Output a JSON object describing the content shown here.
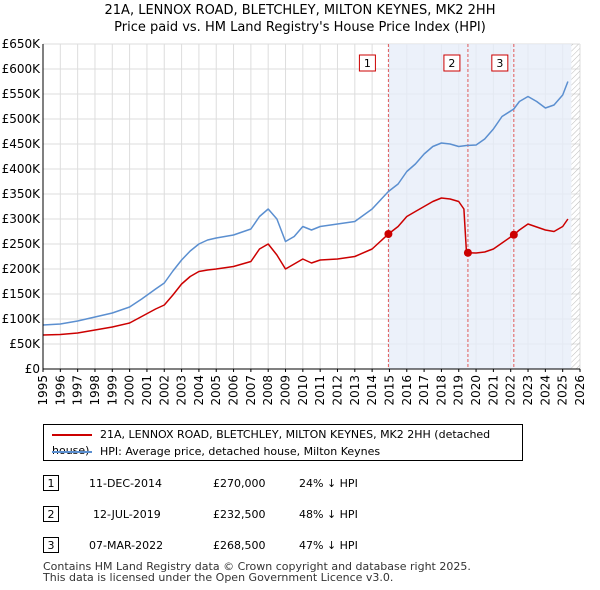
{
  "title_line1": "21A, LENNOX ROAD, BLETCHLEY, MILTON KEYNES, MK2 2HH",
  "title_line2": "Price paid vs. HM Land Registry's House Price Index (HPI)",
  "chart_data": {
    "type": "line",
    "ylim": [
      0,
      650000
    ],
    "xlim": [
      1995,
      2026
    ],
    "y_ticks": [
      {
        "value": 0,
        "label": "£0"
      },
      {
        "value": 50000,
        "label": "£50K"
      },
      {
        "value": 100000,
        "label": "£100K"
      },
      {
        "value": 150000,
        "label": "£150K"
      },
      {
        "value": 200000,
        "label": "£200K"
      },
      {
        "value": 250000,
        "label": "£250K"
      },
      {
        "value": 300000,
        "label": "£300K"
      },
      {
        "value": 350000,
        "label": "£350K"
      },
      {
        "value": 400000,
        "label": "£400K"
      },
      {
        "value": 450000,
        "label": "£450K"
      },
      {
        "value": 500000,
        "label": "£500K"
      },
      {
        "value": 550000,
        "label": "£550K"
      },
      {
        "value": 600000,
        "label": "£600K"
      },
      {
        "value": 650000,
        "label": "£650K"
      }
    ],
    "x_ticks": [
      "1995",
      "1996",
      "1997",
      "1998",
      "1999",
      "2000",
      "2001",
      "2002",
      "2003",
      "2004",
      "2005",
      "2006",
      "2007",
      "2008",
      "2009",
      "2010",
      "2011",
      "2012",
      "2013",
      "2014",
      "2015",
      "2016",
      "2017",
      "2018",
      "2019",
      "2020",
      "2021",
      "2022",
      "2023",
      "2024",
      "2025",
      "2026"
    ],
    "shaded_regions": [
      [
        2014.94,
        2025.5
      ]
    ],
    "hatched_region": [
      2025.5,
      2026
    ],
    "series": [
      {
        "name": "21A, LENNOX ROAD, BLETCHLEY, MILTON KEYNES, MK2 2HH (detached house)",
        "color": "#cc0000",
        "points": [
          [
            1995.0,
            68000
          ],
          [
            1996.0,
            69000
          ],
          [
            1997.0,
            72000
          ],
          [
            1998.0,
            78000
          ],
          [
            1999.0,
            84000
          ],
          [
            2000.0,
            92000
          ],
          [
            2000.7,
            105000
          ],
          [
            2001.5,
            120000
          ],
          [
            2002.0,
            128000
          ],
          [
            2002.5,
            148000
          ],
          [
            2003.0,
            170000
          ],
          [
            2003.5,
            185000
          ],
          [
            2004.0,
            195000
          ],
          [
            2004.5,
            198000
          ],
          [
            2005.0,
            200000
          ],
          [
            2006.0,
            205000
          ],
          [
            2007.0,
            215000
          ],
          [
            2007.5,
            240000
          ],
          [
            2008.0,
            250000
          ],
          [
            2008.5,
            228000
          ],
          [
            2009.0,
            200000
          ],
          [
            2009.5,
            210000
          ],
          [
            2010.0,
            220000
          ],
          [
            2010.5,
            212000
          ],
          [
            2011.0,
            218000
          ],
          [
            2012.0,
            220000
          ],
          [
            2013.0,
            225000
          ],
          [
            2014.0,
            240000
          ],
          [
            2014.94,
            270000
          ],
          [
            2015.5,
            285000
          ],
          [
            2016.0,
            305000
          ],
          [
            2016.5,
            315000
          ],
          [
            2017.0,
            325000
          ],
          [
            2017.5,
            335000
          ],
          [
            2018.0,
            342000
          ],
          [
            2018.5,
            340000
          ],
          [
            2019.0,
            335000
          ],
          [
            2019.3,
            320000
          ],
          [
            2019.45,
            232500
          ],
          [
            2020.0,
            232000
          ],
          [
            2020.5,
            234000
          ],
          [
            2021.0,
            240000
          ],
          [
            2021.5,
            252000
          ],
          [
            2022.18,
            268500
          ],
          [
            2022.5,
            278000
          ],
          [
            2023.0,
            290000
          ],
          [
            2023.5,
            284000
          ],
          [
            2024.0,
            278000
          ],
          [
            2024.5,
            275000
          ],
          [
            2025.0,
            285000
          ],
          [
            2025.3,
            300000
          ]
        ]
      },
      {
        "name": "HPI: Average price, detached house, Milton Keynes",
        "color": "#5b8fd0",
        "points": [
          [
            1995.0,
            88000
          ],
          [
            1996.0,
            90000
          ],
          [
            1997.0,
            96000
          ],
          [
            1998.0,
            104000
          ],
          [
            1999.0,
            112000
          ],
          [
            2000.0,
            124000
          ],
          [
            2000.7,
            140000
          ],
          [
            2001.5,
            160000
          ],
          [
            2002.0,
            172000
          ],
          [
            2002.5,
            196000
          ],
          [
            2003.0,
            218000
          ],
          [
            2003.5,
            236000
          ],
          [
            2004.0,
            250000
          ],
          [
            2004.5,
            258000
          ],
          [
            2005.0,
            262000
          ],
          [
            2006.0,
            268000
          ],
          [
            2007.0,
            280000
          ],
          [
            2007.5,
            305000
          ],
          [
            2008.0,
            320000
          ],
          [
            2008.5,
            300000
          ],
          [
            2009.0,
            255000
          ],
          [
            2009.5,
            265000
          ],
          [
            2010.0,
            285000
          ],
          [
            2010.5,
            278000
          ],
          [
            2011.0,
            285000
          ],
          [
            2012.0,
            290000
          ],
          [
            2013.0,
            295000
          ],
          [
            2014.0,
            320000
          ],
          [
            2014.94,
            355000
          ],
          [
            2015.5,
            370000
          ],
          [
            2016.0,
            395000
          ],
          [
            2016.5,
            410000
          ],
          [
            2017.0,
            430000
          ],
          [
            2017.5,
            445000
          ],
          [
            2018.0,
            452000
          ],
          [
            2018.5,
            450000
          ],
          [
            2019.0,
            445000
          ],
          [
            2019.45,
            447000
          ],
          [
            2020.0,
            448000
          ],
          [
            2020.5,
            460000
          ],
          [
            2021.0,
            480000
          ],
          [
            2021.5,
            505000
          ],
          [
            2022.18,
            520000
          ],
          [
            2022.5,
            535000
          ],
          [
            2023.0,
            545000
          ],
          [
            2023.5,
            535000
          ],
          [
            2024.0,
            522000
          ],
          [
            2024.5,
            528000
          ],
          [
            2025.0,
            548000
          ],
          [
            2025.3,
            575000
          ]
        ]
      }
    ],
    "sales": [
      {
        "id": "1",
        "x": 2014.94,
        "y": 270000
      },
      {
        "id": "2",
        "x": 2019.53,
        "y": 232500
      },
      {
        "id": "3",
        "x": 2022.18,
        "y": 268500
      }
    ]
  },
  "legend": [
    {
      "label": "21A, LENNOX ROAD, BLETCHLEY, MILTON KEYNES, MK2 2HH (detached house)",
      "color": "#cc0000"
    },
    {
      "label": "HPI: Average price, detached house, Milton Keynes",
      "color": "#5b8fd0"
    }
  ],
  "transactions": [
    {
      "num": "1",
      "date": "11-DEC-2014",
      "price": "£270,000",
      "hpi": "24% ↓ HPI"
    },
    {
      "num": "2",
      "date": "12-JUL-2019",
      "price": "£232,500",
      "hpi": "48% ↓ HPI"
    },
    {
      "num": "3",
      "date": "07-MAR-2022",
      "price": "£268,500",
      "hpi": "47% ↓ HPI"
    }
  ],
  "footer_line1": "Contains HM Land Registry data © Crown copyright and database right 2025.",
  "footer_line2": "This data is licensed under the Open Government Licence v3.0."
}
